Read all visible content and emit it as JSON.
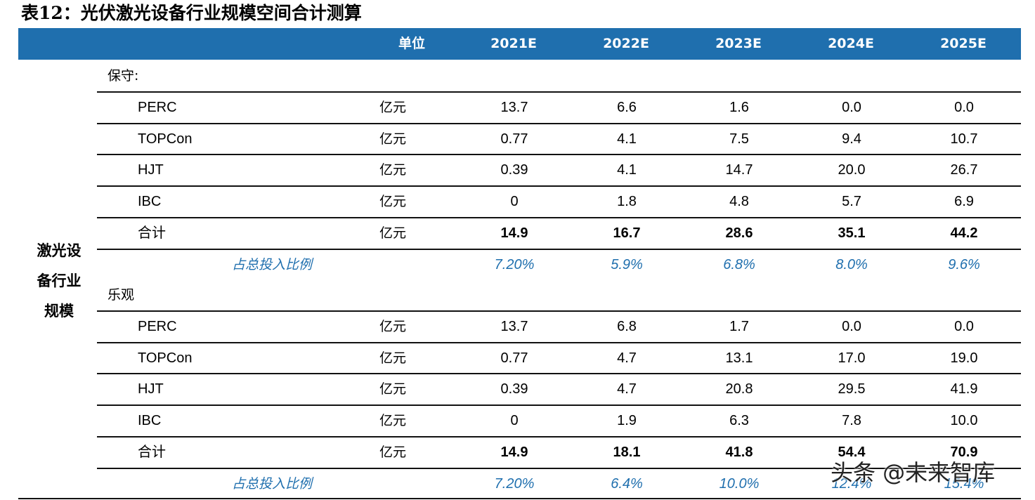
{
  "title": "表12：光伏激光设备行业规模空间合计测算",
  "header": {
    "unit": "单位",
    "years": [
      "2021E",
      "2022E",
      "2023E",
      "2024E",
      "2025E"
    ]
  },
  "row_group_label": [
    "激光设",
    "备行业",
    "规模"
  ],
  "scenarios": [
    {
      "label": "保守:",
      "rows": [
        {
          "name": "PERC",
          "unit": "亿元",
          "values": [
            "13.7",
            "6.6",
            "1.6",
            "0.0",
            "0.0"
          ]
        },
        {
          "name": "TOPCon",
          "unit": "亿元",
          "values": [
            "0.77",
            "4.1",
            "7.5",
            "9.4",
            "10.7"
          ]
        },
        {
          "name": "HJT",
          "unit": "亿元",
          "values": [
            "0.39",
            "4.1",
            "14.7",
            "20.0",
            "26.7"
          ]
        },
        {
          "name": "IBC",
          "unit": "亿元",
          "values": [
            "0",
            "1.8",
            "4.8",
            "5.7",
            "6.9"
          ]
        }
      ],
      "total": {
        "name": "合计",
        "unit": "亿元",
        "values": [
          "14.9",
          "16.7",
          "28.6",
          "35.1",
          "44.2"
        ]
      },
      "share": {
        "name": "占总投入比例",
        "values": [
          "7.20%",
          "5.9%",
          "6.8%",
          "8.0%",
          "9.6%"
        ]
      }
    },
    {
      "label": "乐观",
      "rows": [
        {
          "name": "PERC",
          "unit": "亿元",
          "values": [
            "13.7",
            "6.8",
            "1.7",
            "0.0",
            "0.0"
          ]
        },
        {
          "name": "TOPCon",
          "unit": "亿元",
          "values": [
            "0.77",
            "4.7",
            "13.1",
            "17.0",
            "19.0"
          ]
        },
        {
          "name": "HJT",
          "unit": "亿元",
          "values": [
            "0.39",
            "4.7",
            "20.8",
            "29.5",
            "41.9"
          ]
        },
        {
          "name": "IBC",
          "unit": "亿元",
          "values": [
            "0",
            "1.9",
            "6.3",
            "7.8",
            "10.0"
          ]
        }
      ],
      "total": {
        "name": "合计",
        "unit": "亿元",
        "values": [
          "14.9",
          "18.1",
          "41.8",
          "54.4",
          "70.9"
        ]
      },
      "share": {
        "name": "占总投入比例",
        "values": [
          "7.20%",
          "6.4%",
          "10.0%",
          "12.4%",
          "15.4%"
        ]
      }
    }
  ],
  "watermark": "头条 @未来智库",
  "colors": {
    "header_bg": "#1f6fae",
    "share_text": "#1f6fae"
  }
}
